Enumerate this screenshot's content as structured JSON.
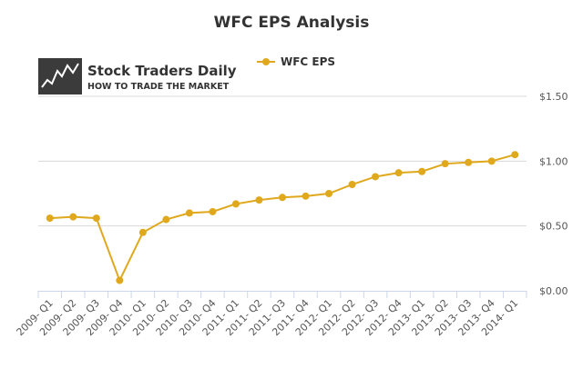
{
  "chart_data": {
    "type": "line",
    "title": "WFC EPS Analysis",
    "categories": [
      "2009- Q1",
      "2009- Q2",
      "2009- Q3",
      "2009- Q4",
      "2010- Q1",
      "2010- Q2",
      "2010- Q3",
      "2010- Q4",
      "2011- Q1",
      "2011- Q2",
      "2011- Q3",
      "2011- Q4",
      "2012- Q1",
      "2012- Q2",
      "2012- Q3",
      "2012- Q4",
      "2013- Q1",
      "2013- Q2",
      "2013- Q3",
      "2013- Q4",
      "2014- Q1"
    ],
    "series": [
      {
        "name": "WFC EPS",
        "color": "#e0a81c",
        "values": [
          0.56,
          0.57,
          0.56,
          0.08,
          0.45,
          0.55,
          0.6,
          0.61,
          0.67,
          0.7,
          0.72,
          0.73,
          0.75,
          0.82,
          0.88,
          0.91,
          0.92,
          0.98,
          0.99,
          1.0,
          1.05
        ]
      }
    ],
    "ylim": [
      0,
      1.5
    ],
    "yticks": [
      0,
      0.5,
      1.0,
      1.5
    ],
    "ytick_labels": [
      "$0.00",
      "$0.50",
      "$1.00",
      "$1.50"
    ],
    "y_axis_side": "right",
    "grid": true,
    "legend_placement": "top-center",
    "xlabel": "",
    "ylabel": ""
  },
  "logo": {
    "title": "Stock Traders Daily",
    "subtitle": "HOW TO TRADE THE MARKET",
    "icon": "stock-chart-logo-icon"
  }
}
